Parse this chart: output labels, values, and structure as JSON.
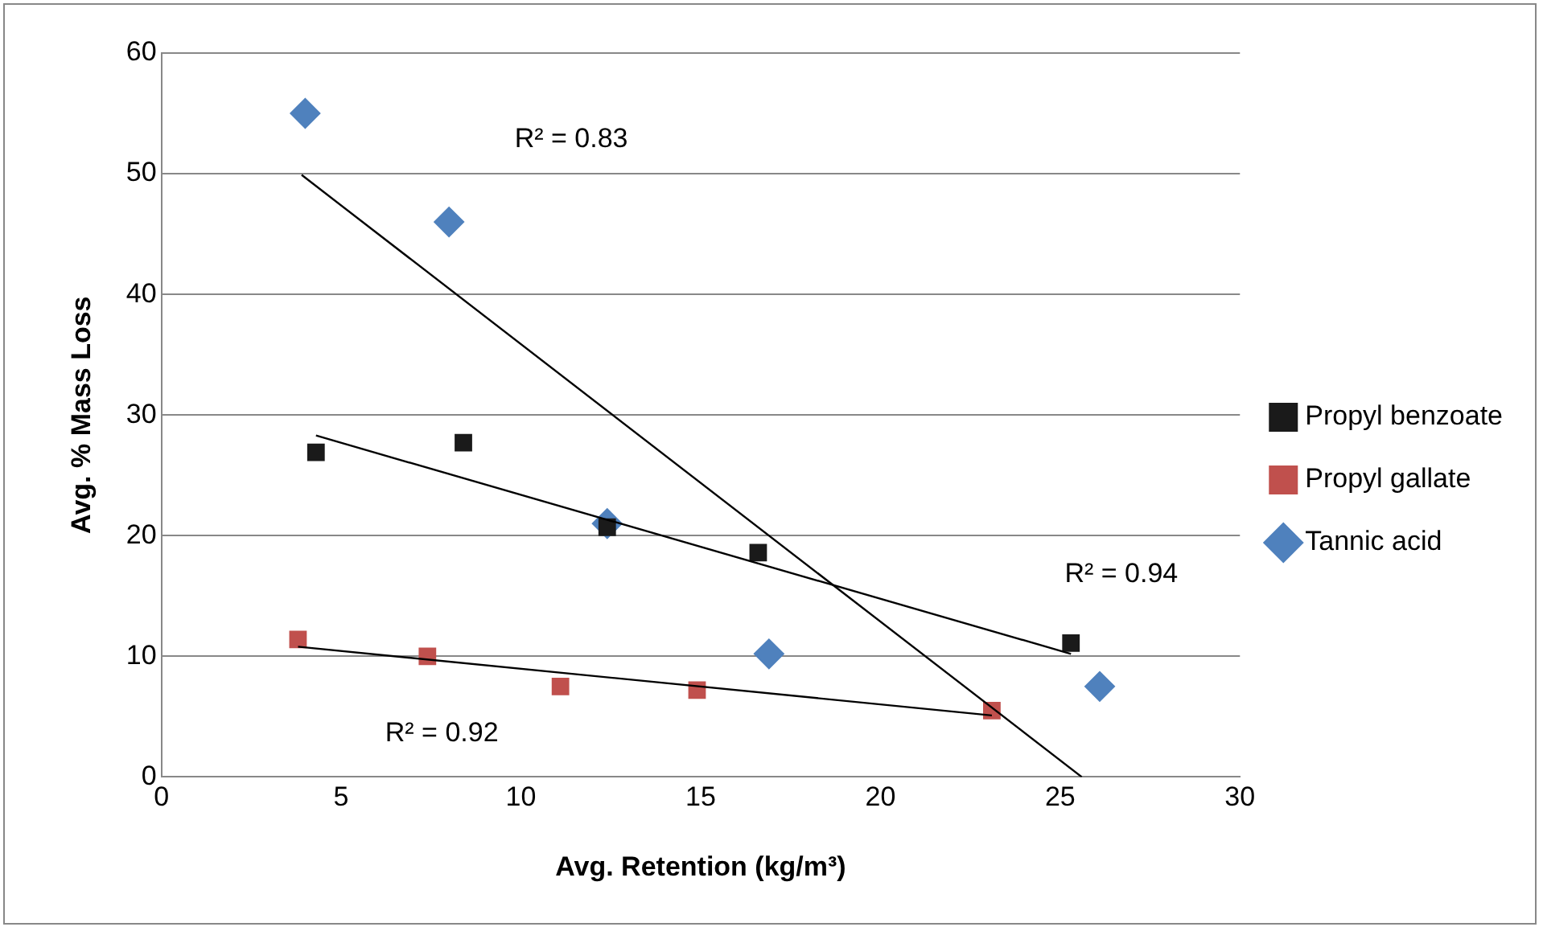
{
  "chart_data": {
    "type": "scatter",
    "xlabel": "Avg. Retention (kg/m³)",
    "ylabel": "Avg. % Mass Loss",
    "xlim": [
      0,
      30
    ],
    "xticks": [
      0,
      5,
      10,
      15,
      20,
      25,
      30
    ],
    "ylim": [
      0,
      60
    ],
    "yticks": [
      0,
      10,
      20,
      30,
      40,
      50,
      60
    ],
    "grid": "y",
    "legend": "right",
    "series": [
      {
        "name": "Tannic acid",
        "color": "#4f81bd",
        "marker": "diamond",
        "x": [
          4,
          8,
          12.4,
          16.9,
          26.1
        ],
        "values": [
          55,
          46,
          21,
          10.2,
          7.5
        ]
      },
      {
        "name": "Propyl gallate",
        "color": "#c0504d",
        "marker": "square",
        "x": [
          3.8,
          7.4,
          11.1,
          14.9,
          23.1
        ],
        "values": [
          11.4,
          10,
          7.5,
          7.2,
          5.5
        ]
      },
      {
        "name": "Propyl benzoate",
        "color": "#1a1a1a",
        "marker": "square",
        "x": [
          4.3,
          8.4,
          12.4,
          16.6,
          25.3
        ],
        "values": [
          26.9,
          27.7,
          20.7,
          18.6,
          11.1
        ]
      },
      {
        "type": "line",
        "color": "#000000",
        "marker": "none",
        "x": [
          3.9,
          25.6
        ],
        "values": [
          49.9,
          0
        ]
      },
      {
        "type": "line",
        "color": "#000000",
        "marker": "none",
        "x": [
          4.3,
          25.3
        ],
        "values": [
          28.3,
          10.2
        ]
      },
      {
        "type": "line",
        "color": "#000000",
        "marker": "none",
        "x": [
          3.8,
          23.1
        ],
        "values": [
          10.8,
          5.1
        ]
      }
    ],
    "annotations": [
      "R² = 0.83",
      "R² = 0.94",
      "R² = 0.92"
    ]
  }
}
